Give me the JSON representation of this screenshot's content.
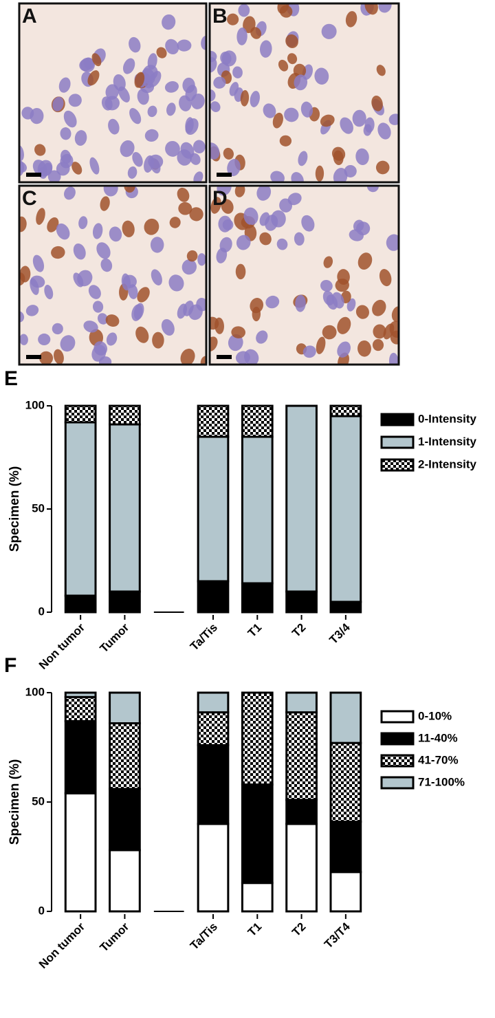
{
  "panels": [
    "A",
    "B",
    "C",
    "D"
  ],
  "chart_data": [
    {
      "type": "bar",
      "stacked": true,
      "title": "E",
      "ylabel": "Specimen (%)",
      "categories": [
        "Non tumor",
        "Tumor",
        null,
        "Ta/Tis",
        "T1",
        "T2",
        "T3/4"
      ],
      "ylim": [
        0,
        100
      ],
      "yticks": [
        0,
        50,
        100
      ],
      "series": [
        {
          "name": "0-Intensity",
          "color": "#000000",
          "values": [
            8,
            10,
            null,
            15,
            14,
            10,
            5
          ]
        },
        {
          "name": "1-Intensity",
          "color": "#b3c6cd",
          "values": [
            84,
            81,
            null,
            70,
            71,
            90,
            90
          ]
        },
        {
          "name": "2-Intensity",
          "color": "#000000",
          "pattern": "checker",
          "values": [
            8,
            9,
            null,
            15,
            15,
            0,
            5
          ]
        }
      ]
    },
    {
      "type": "bar",
      "stacked": true,
      "title": "F",
      "ylabel": "Specimen (%)",
      "categories": [
        "Non tumor",
        "Tumor",
        null,
        "Ta/Tis",
        "T1",
        "T2",
        "T3/T4"
      ],
      "ylim": [
        0,
        100
      ],
      "yticks": [
        0,
        50,
        100
      ],
      "series": [
        {
          "name": "0-10%",
          "color": "#ffffff",
          "values": [
            54,
            28,
            null,
            40,
            13,
            40,
            18
          ]
        },
        {
          "name": "11-40%",
          "color": "#000000",
          "values": [
            33,
            28,
            null,
            36,
            45,
            11,
            23
          ]
        },
        {
          "name": "41-70%",
          "color": "#000000",
          "pattern": "checker",
          "values": [
            11,
            30,
            null,
            15,
            42,
            40,
            36
          ]
        },
        {
          "name": "71-100%",
          "color": "#b3c6cd",
          "values": [
            2,
            14,
            null,
            9,
            0,
            9,
            23
          ]
        }
      ]
    }
  ]
}
